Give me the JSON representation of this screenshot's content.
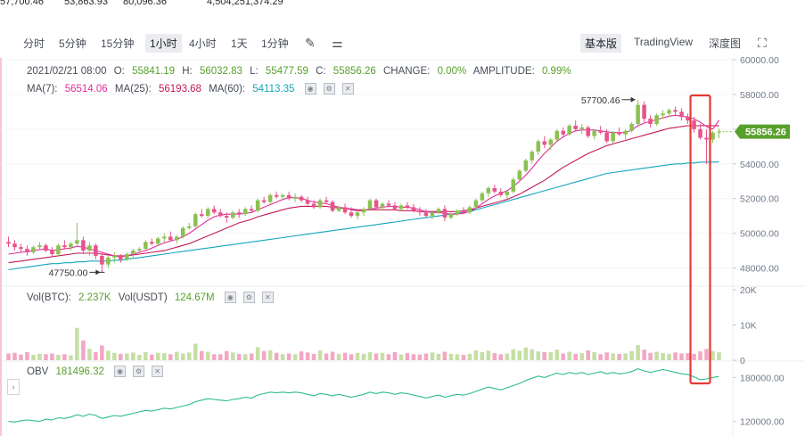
{
  "top_stats": [
    "57,700.46",
    "53,863.93",
    "80,096.36",
    "4,504,251,374.29"
  ],
  "toolbar": {
    "timeframes": [
      "分时",
      "5分钟",
      "15分钟",
      "1小时",
      "4小时",
      "1天",
      "1分钟"
    ],
    "active_timeframe": "1小时",
    "right_tabs": [
      "基本版",
      "TradingView",
      "深度图"
    ],
    "active_right_tab": "基本版",
    "icons": [
      "pencil-icon",
      "indicator-settings-icon",
      "fullscreen-icon"
    ]
  },
  "ohlc": {
    "date": "2021/02/21 08:00",
    "o_label": "O:",
    "o": "55841.19",
    "h_label": "H:",
    "h": "56032.83",
    "l_label": "L:",
    "l": "55477.59",
    "c_label": "C:",
    "c": "55856.26",
    "change_label": "CHANGE:",
    "change": "0.00%",
    "amp_label": "AMPLITUDE:",
    "amp": "0.99%"
  },
  "ma": {
    "ma7_label": "MA(7):",
    "ma7": "56514.06",
    "ma25_label": "MA(25):",
    "ma25": "56193.68",
    "ma60_label": "MA(60):",
    "ma60": "54113.35"
  },
  "vol": {
    "btc_label": "Vol(BTC):",
    "btc": "2.237K",
    "usdt_label": "Vol(USDT)",
    "usdt": "124.67M"
  },
  "obv": {
    "label": "OBV",
    "value": "181496.32"
  },
  "colors": {
    "up": "#8cc152",
    "down": "#e8528a",
    "ma7": "#e02f9a",
    "ma25": "#c2185b",
    "ma60": "#14a5bb",
    "obv": "#2ebd85",
    "highlight": "#e53935"
  },
  "chart_data": {
    "type": "candlestick",
    "price_axis": {
      "ticks": [
        "60000.00",
        "58000.00",
        "56000.00",
        "54000.00",
        "52000.00",
        "50000.00",
        "48000.00"
      ],
      "range": [
        47000,
        60000
      ]
    },
    "volume_axis": {
      "ticks": [
        "20K",
        "10K",
        "0"
      ],
      "range": [
        0,
        20000
      ]
    },
    "obv_axis": {
      "ticks": [
        "180000.00",
        "120000.00"
      ],
      "range": [
        100000,
        200000
      ]
    },
    "last_price": "55856.26",
    "annotations": {
      "high": "57700.46",
      "low": "47750.00"
    },
    "candles": [
      [
        49500,
        49800,
        49200,
        49400
      ],
      [
        49400,
        49600,
        49000,
        49200
      ],
      [
        49200,
        49400,
        48900,
        49100
      ],
      [
        49100,
        49300,
        48700,
        48900
      ],
      [
        48900,
        49300,
        48800,
        49200
      ],
      [
        49200,
        49500,
        49000,
        49300
      ],
      [
        49300,
        49400,
        48900,
        49000
      ],
      [
        49000,
        49200,
        48700,
        48800
      ],
      [
        48800,
        49400,
        48700,
        49300
      ],
      [
        49300,
        49600,
        49100,
        49200
      ],
      [
        49200,
        49500,
        49000,
        49400
      ],
      [
        49400,
        50600,
        49300,
        49600
      ],
      [
        49600,
        49800,
        48800,
        49000
      ],
      [
        49000,
        49500,
        48700,
        49300
      ],
      [
        49300,
        49400,
        48500,
        48700
      ],
      [
        48700,
        48900,
        47750,
        48200
      ],
      [
        48200,
        48700,
        48000,
        48600
      ],
      [
        48600,
        48900,
        48300,
        48700
      ],
      [
        48700,
        48800,
        48300,
        48500
      ],
      [
        48500,
        48900,
        48400,
        48800
      ],
      [
        48800,
        49100,
        48600,
        49000
      ],
      [
        49000,
        49200,
        48800,
        49100
      ],
      [
        49100,
        49600,
        49000,
        49500
      ],
      [
        49500,
        49700,
        49300,
        49400
      ],
      [
        49400,
        49800,
        49300,
        49700
      ],
      [
        49700,
        50000,
        49500,
        49800
      ],
      [
        49800,
        50100,
        49600,
        49600
      ],
      [
        49600,
        49900,
        49400,
        49800
      ],
      [
        49800,
        50400,
        49700,
        50300
      ],
      [
        50300,
        50600,
        50200,
        50400
      ],
      [
        50400,
        51200,
        50300,
        51100
      ],
      [
        51100,
        51400,
        50900,
        51000
      ],
      [
        51000,
        51500,
        50900,
        51400
      ],
      [
        51400,
        51600,
        51100,
        51200
      ],
      [
        51200,
        51400,
        50900,
        51000
      ],
      [
        51000,
        51200,
        50600,
        50900
      ],
      [
        50900,
        51300,
        50800,
        51200
      ],
      [
        51200,
        51400,
        50900,
        51100
      ],
      [
        51100,
        51500,
        51000,
        51400
      ],
      [
        51400,
        51600,
        51200,
        51300
      ],
      [
        51300,
        52000,
        51200,
        51900
      ],
      [
        51900,
        52100,
        51700,
        51800
      ],
      [
        51800,
        52300,
        51700,
        52200
      ],
      [
        52200,
        52400,
        52000,
        52100
      ],
      [
        52100,
        52300,
        51900,
        52200
      ],
      [
        52200,
        52400,
        51900,
        52000
      ],
      [
        52000,
        52300,
        51800,
        52100
      ],
      [
        52100,
        52200,
        51800,
        51900
      ],
      [
        51900,
        52100,
        51600,
        51700
      ],
      [
        51700,
        51900,
        51400,
        51500
      ],
      [
        51500,
        52000,
        51400,
        51900
      ],
      [
        51900,
        52100,
        51700,
        51800
      ],
      [
        51800,
        51900,
        51200,
        51300
      ],
      [
        51300,
        51600,
        51200,
        51500
      ],
      [
        51500,
        51700,
        51100,
        51200
      ],
      [
        51200,
        51500,
        50900,
        51000
      ],
      [
        51000,
        51300,
        50800,
        51200
      ],
      [
        51200,
        51500,
        51000,
        51400
      ],
      [
        51400,
        52000,
        51300,
        51900
      ],
      [
        51900,
        52000,
        51400,
        51500
      ],
      [
        51500,
        51800,
        51300,
        51700
      ],
      [
        51700,
        51900,
        51500,
        51600
      ],
      [
        51600,
        51800,
        51300,
        51400
      ],
      [
        51400,
        51700,
        51300,
        51600
      ],
      [
        51600,
        51800,
        51400,
        51500
      ],
      [
        51500,
        51700,
        51200,
        51300
      ],
      [
        51300,
        51500,
        51000,
        51200
      ],
      [
        51200,
        51400,
        50900,
        51000
      ],
      [
        51000,
        51300,
        50800,
        51200
      ],
      [
        51200,
        51500,
        51100,
        51400
      ],
      [
        51400,
        51600,
        50700,
        50900
      ],
      [
        50900,
        51200,
        50800,
        51100
      ],
      [
        51100,
        51400,
        51000,
        51300
      ],
      [
        51300,
        51500,
        51100,
        51200
      ],
      [
        51200,
        51600,
        51100,
        51500
      ],
      [
        51500,
        52000,
        51400,
        51900
      ],
      [
        51900,
        52400,
        51800,
        52300
      ],
      [
        52300,
        52700,
        52100,
        52600
      ],
      [
        52600,
        52800,
        52300,
        52400
      ],
      [
        52400,
        52600,
        52100,
        52200
      ],
      [
        52200,
        52500,
        52000,
        52400
      ],
      [
        52400,
        53200,
        52300,
        53100
      ],
      [
        53100,
        53700,
        53000,
        53600
      ],
      [
        53600,
        54300,
        53500,
        54200
      ],
      [
        54200,
        54800,
        54000,
        54700
      ],
      [
        54700,
        55400,
        54500,
        55300
      ],
      [
        55300,
        55600,
        54900,
        55100
      ],
      [
        55100,
        55500,
        54800,
        55400
      ],
      [
        55400,
        56000,
        55300,
        55900
      ],
      [
        55900,
        56100,
        55500,
        55700
      ],
      [
        55700,
        56300,
        55600,
        56200
      ],
      [
        56200,
        56500,
        55900,
        56000
      ],
      [
        56000,
        56300,
        55700,
        56100
      ],
      [
        56100,
        56200,
        55500,
        55600
      ],
      [
        55600,
        56000,
        55400,
        55900
      ],
      [
        55900,
        56200,
        55700,
        55800
      ],
      [
        55800,
        56000,
        55200,
        55300
      ],
      [
        55300,
        55900,
        55200,
        55800
      ],
      [
        55800,
        56100,
        55600,
        55700
      ],
      [
        55700,
        56000,
        55400,
        55900
      ],
      [
        55900,
        56400,
        55800,
        56300
      ],
      [
        56300,
        57700,
        56200,
        57400
      ],
      [
        57400,
        57600,
        56400,
        56600
      ],
      [
        56600,
        56800,
        56100,
        56300
      ],
      [
        56300,
        56900,
        56200,
        56800
      ],
      [
        56800,
        57100,
        56600,
        56900
      ],
      [
        56900,
        57200,
        56700,
        57100
      ],
      [
        57100,
        57300,
        56800,
        57000
      ],
      [
        57000,
        57200,
        56500,
        56700
      ],
      [
        56700,
        56900,
        56300,
        56500
      ],
      [
        56500,
        56700,
        55800,
        56000
      ],
      [
        56000,
        56300,
        55400,
        55500
      ],
      [
        55500,
        56000,
        54000,
        55400
      ],
      [
        55400,
        55900,
        55200,
        55800
      ],
      [
        55841,
        56033,
        55478,
        55856
      ]
    ],
    "volume": [
      1900,
      2100,
      1600,
      2300,
      1500,
      1800,
      1700,
      1900,
      1500,
      1700,
      1400,
      9200,
      5600,
      3200,
      2300,
      4200,
      2700,
      2100,
      1800,
      1900,
      2200,
      1500,
      2300,
      1600,
      2100,
      2000,
      1700,
      2400,
      1900,
      2200,
      4700,
      2600,
      2400,
      1700,
      1700,
      2600,
      2200,
      1800,
      1700,
      1900,
      3700,
      2600,
      2800,
      2100,
      1700,
      1900,
      1700,
      2500,
      2200,
      1800,
      2800,
      1900,
      2400,
      1800,
      2100,
      1700,
      2100,
      1800,
      2300,
      1900,
      2100,
      1700,
      2300,
      1600,
      2000,
      1700,
      1600,
      1900,
      2200,
      1800,
      2400,
      1800,
      1700,
      1500,
      1800,
      2800,
      2300,
      2700,
      2000,
      1700,
      1900,
      3100,
      2700,
      3600,
      3100,
      2500,
      2300,
      2300,
      3000,
      1900,
      2400,
      1800,
      2000,
      2800,
      2300,
      1700,
      2200,
      1900,
      1800,
      1900,
      2600,
      4300,
      3000,
      2100,
      2400,
      2000,
      1800,
      2200,
      1900,
      2000,
      1800,
      2500,
      3200,
      2600,
      2237
    ],
    "obv": [
      120000,
      119000,
      121000,
      122000,
      121000,
      120000,
      123000,
      122000,
      125000,
      124000,
      126000,
      129000,
      127000,
      130000,
      128000,
      124000,
      126000,
      128000,
      127000,
      129000,
      131000,
      133000,
      135000,
      134000,
      136000,
      138000,
      137000,
      139000,
      141000,
      143000,
      147000,
      149000,
      151000,
      150000,
      149000,
      148000,
      150000,
      151000,
      153000,
      152000,
      156000,
      158000,
      160000,
      159000,
      160000,
      159000,
      160000,
      159000,
      157000,
      155000,
      158000,
      157000,
      155000,
      157000,
      155000,
      153000,
      155000,
      157000,
      160000,
      158000,
      160000,
      159000,
      157000,
      159000,
      158000,
      156000,
      154000,
      152000,
      154000,
      156000,
      153000,
      155000,
      157000,
      156000,
      158000,
      161000,
      164000,
      167000,
      165000,
      163000,
      166000,
      169000,
      172000,
      176000,
      179000,
      182000,
      180000,
      183000,
      186000,
      184000,
      187000,
      185000,
      187000,
      184000,
      186000,
      188000,
      185000,
      187000,
      185000,
      186000,
      188000,
      192000,
      189000,
      187000,
      189000,
      191000,
      189000,
      187000,
      185000,
      184000,
      181000,
      177000,
      178000,
      180000,
      181496
    ],
    "ma7": [
      48800,
      48850,
      48900,
      48950,
      49000,
      49050,
      49100,
      49000,
      49050,
      49100,
      49150,
      49250,
      49200,
      49100,
      49000,
      48900,
      48800,
      48700,
      48650,
      48700,
      48800,
      48900,
      49000,
      49150,
      49300,
      49450,
      49550,
      49650,
      49800,
      50000,
      50250,
      50500,
      50750,
      50950,
      51050,
      51100,
      51100,
      51100,
      51150,
      51200,
      51350,
      51500,
      51650,
      51800,
      51950,
      52050,
      52050,
      52000,
      51900,
      51800,
      51750,
      51700,
      51600,
      51500,
      51450,
      51350,
      51300,
      51300,
      51400,
      51450,
      51500,
      51550,
      51550,
      51500,
      51500,
      51450,
      51350,
      51250,
      51200,
      51200,
      51150,
      51100,
      51100,
      51150,
      51250,
      51450,
      51700,
      51950,
      52150,
      52300,
      52450,
      52700,
      53000,
      53350,
      53750,
      54200,
      54600,
      54950,
      55300,
      55550,
      55750,
      55900,
      55950,
      55950,
      55950,
      55900,
      55850,
      55800,
      55800,
      55800,
      55950,
      56200,
      56350,
      56450,
      56550,
      56650,
      56750,
      56800,
      56750,
      56700,
      56600,
      56400,
      56150,
      56000,
      56514
    ],
    "ma25": [
      48300,
      48350,
      48400,
      48450,
      48500,
      48550,
      48600,
      48650,
      48700,
      48750,
      48800,
      48850,
      48850,
      48850,
      48850,
      48800,
      48750,
      48700,
      48700,
      48700,
      48750,
      48800,
      48850,
      48900,
      48950,
      49000,
      49100,
      49200,
      49300,
      49400,
      49550,
      49700,
      49850,
      50000,
      50150,
      50300,
      50450,
      50600,
      50700,
      50800,
      50950,
      51050,
      51150,
      51250,
      51350,
      51450,
      51500,
      51550,
      51550,
      51550,
      51550,
      51550,
      51500,
      51450,
      51450,
      51400,
      51350,
      51350,
      51350,
      51350,
      51350,
      51350,
      51350,
      51300,
      51300,
      51300,
      51250,
      51250,
      51250,
      51250,
      51250,
      51250,
      51250,
      51300,
      51350,
      51450,
      51550,
      51650,
      51750,
      51850,
      51950,
      52100,
      52250,
      52450,
      52650,
      52850,
      53050,
      53300,
      53550,
      53800,
      54000,
      54200,
      54400,
      54600,
      54750,
      54900,
      55050,
      55150,
      55250,
      55350,
      55450,
      55550,
      55650,
      55750,
      55850,
      55950,
      56050,
      56100,
      56150,
      56200,
      56200,
      56200,
      56200,
      56200,
      56194
    ],
    "ma60": [
      47900,
      47950,
      48000,
      48050,
      48100,
      48150,
      48200,
      48250,
      48250,
      48300,
      48300,
      48350,
      48350,
      48400,
      48400,
      48400,
      48400,
      48450,
      48450,
      48500,
      48550,
      48600,
      48650,
      48700,
      48750,
      48800,
      48850,
      48900,
      48950,
      49000,
      49050,
      49100,
      49150,
      49200,
      49250,
      49300,
      49350,
      49400,
      49450,
      49500,
      49550,
      49600,
      49650,
      49700,
      49750,
      49800,
      49850,
      49900,
      49950,
      50000,
      50050,
      50100,
      50150,
      50200,
      50250,
      50300,
      50350,
      50400,
      50450,
      50500,
      50550,
      50600,
      50650,
      50700,
      50750,
      50800,
      50850,
      50900,
      50950,
      51000,
      51050,
      51100,
      51150,
      51200,
      51250,
      51350,
      51450,
      51550,
      51650,
      51750,
      51850,
      51950,
      52050,
      52150,
      52250,
      52350,
      52450,
      52550,
      52650,
      52750,
      52850,
      52950,
      53050,
      53150,
      53250,
      53350,
      53450,
      53500,
      53550,
      53600,
      53650,
      53700,
      53750,
      53800,
      53850,
      53900,
      53950,
      54000,
      54000,
      54050,
      54050,
      54100,
      54100,
      54100,
      54113
    ]
  }
}
